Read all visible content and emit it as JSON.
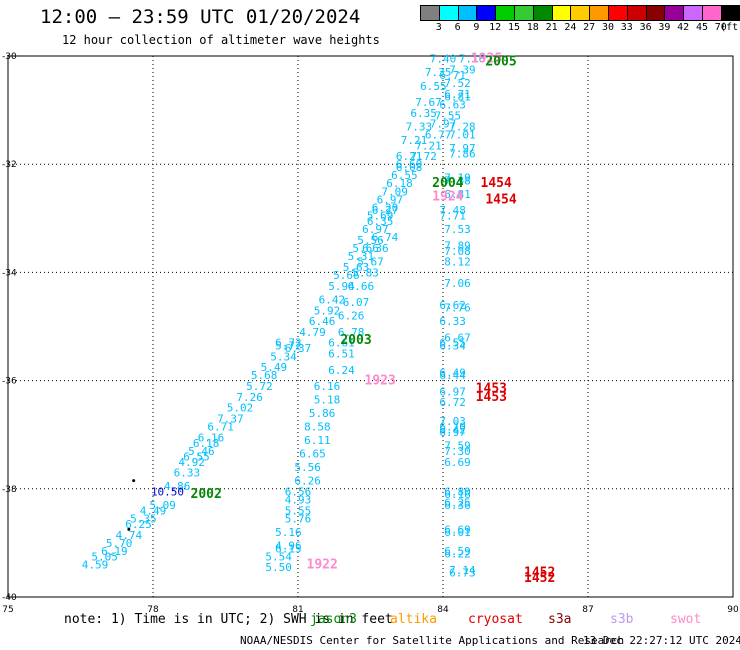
{
  "header": {
    "title": "12:00 — 23:59 UTC 01/20/2024",
    "subtitle": "12 hour collection of altimeter wave heights"
  },
  "colorbar": {
    "labels": [
      "3",
      "6",
      "9",
      "12",
      "15",
      "18",
      "21",
      "24",
      "27",
      "30",
      "33",
      "36",
      "39",
      "42",
      "45",
      "70",
      "(ft)"
    ],
    "colors": [
      "#808080",
      "#00ffff",
      "#00bfff",
      "#0000ff",
      "#00cc00",
      "#33cc33",
      "#008800",
      "#ffff00",
      "#ffcc00",
      "#ff9900",
      "#ff0000",
      "#cc0000",
      "#880000",
      "#990099",
      "#cc66ff",
      "#ff66cc",
      "#000000"
    ]
  },
  "note": "note: 1) Time is in UTC; 2) SWH is in feet",
  "legend": [
    {
      "name": "jason3",
      "color": "#008800"
    },
    {
      "name": "altika",
      "color": "#ff9900"
    },
    {
      "name": "cryosat",
      "color": "#dd0000"
    },
    {
      "name": "s3a",
      "color": "#880000"
    },
    {
      "name": "s3b",
      "color": "#bb99ee"
    },
    {
      "name": "swot",
      "color": "#ff88cc"
    }
  ],
  "footer": {
    "credit": "NOAA/NESDIS Center for Satellite Applications and Research",
    "timestamp": "13 Dec 22:27:12 UTC 2024"
  },
  "chart_data": {
    "type": "scatter",
    "title": "12:00 — 23:59 UTC 01/20/2024",
    "subtitle": "12 hour collection of altimeter wave heights",
    "xlabel": "",
    "ylabel": "",
    "xlim": [
      75,
      90
    ],
    "ylim": [
      -40,
      -30
    ],
    "xticks": [
      "75",
      "78",
      "81",
      "84",
      "87",
      "90"
    ],
    "yticks": [
      "-30",
      "-32",
      "-34",
      "-36",
      "-38",
      "-40"
    ],
    "grid": true,
    "points": [
      {
        "x": 84.0,
        "y": -30.05,
        "text": "7.40",
        "color": "#00bfff"
      },
      {
        "x": 84.6,
        "y": -30.05,
        "text": "7.16",
        "color": "#00bfff"
      },
      {
        "x": 83.9,
        "y": -30.3,
        "text": "7.35",
        "color": "#00bfff"
      },
      {
        "x": 84.4,
        "y": -30.25,
        "text": "7.39",
        "color": "#00bfff"
      },
      {
        "x": 84.2,
        "y": -30.35,
        "text": "6.71",
        "color": "#00bfff"
      },
      {
        "x": 84.3,
        "y": -30.5,
        "text": "7.52",
        "color": "#00bfff"
      },
      {
        "x": 83.8,
        "y": -30.55,
        "text": "6.55",
        "color": "#00bfff"
      },
      {
        "x": 84.3,
        "y": -30.7,
        "text": "6.71",
        "color": "#00bfff"
      },
      {
        "x": 84.3,
        "y": -30.75,
        "text": "6.81",
        "color": "#00bfff"
      },
      {
        "x": 83.7,
        "y": -30.85,
        "text": "7.67",
        "color": "#00bfff"
      },
      {
        "x": 84.2,
        "y": -30.9,
        "text": "6.63",
        "color": "#00bfff"
      },
      {
        "x": 83.6,
        "y": -31.05,
        "text": "6.35",
        "color": "#00bfff"
      },
      {
        "x": 84.1,
        "y": -31.1,
        "text": "7.55",
        "color": "#00bfff"
      },
      {
        "x": 83.5,
        "y": -31.3,
        "text": "7.33",
        "color": "#00bfff"
      },
      {
        "x": 84.0,
        "y": -31.25,
        "text": "7.97",
        "color": "#00bfff"
      },
      {
        "x": 84.4,
        "y": -31.3,
        "text": "7.28",
        "color": "#00bfff"
      },
      {
        "x": 83.9,
        "y": -31.45,
        "text": "6.77",
        "color": "#00bfff"
      },
      {
        "x": 84.4,
        "y": -31.45,
        "text": "7.01",
        "color": "#00bfff"
      },
      {
        "x": 83.4,
        "y": -31.55,
        "text": "7.21",
        "color": "#00bfff"
      },
      {
        "x": 83.7,
        "y": -31.65,
        "text": "7.21",
        "color": "#00bfff"
      },
      {
        "x": 84.4,
        "y": -31.7,
        "text": "7.97",
        "color": "#00bfff"
      },
      {
        "x": 83.3,
        "y": -31.85,
        "text": "6.21",
        "color": "#00bfff"
      },
      {
        "x": 83.6,
        "y": -31.85,
        "text": "7.72",
        "color": "#00bfff"
      },
      {
        "x": 84.4,
        "y": -31.8,
        "text": "7.86",
        "color": "#00bfff"
      },
      {
        "x": 83.3,
        "y": -32.0,
        "text": "6.69",
        "color": "#00bfff"
      },
      {
        "x": 83.3,
        "y": -32.05,
        "text": "6.08",
        "color": "#00bfff"
      },
      {
        "x": 84.3,
        "y": -32.25,
        "text": "7.19",
        "color": "#00bfff"
      },
      {
        "x": 83.2,
        "y": -32.2,
        "text": "6.55",
        "color": "#00bfff"
      },
      {
        "x": 84.3,
        "y": -32.3,
        "text": "7.38",
        "color": "#00bfff"
      },
      {
        "x": 83.1,
        "y": -32.35,
        "text": "6.18",
        "color": "#00bfff"
      },
      {
        "x": 83.0,
        "y": -32.5,
        "text": "7.09",
        "color": "#00bfff"
      },
      {
        "x": 84.3,
        "y": -32.55,
        "text": "6.81",
        "color": "#00bfff"
      },
      {
        "x": 82.9,
        "y": -32.65,
        "text": "6.97",
        "color": "#00bfff"
      },
      {
        "x": 82.8,
        "y": -32.8,
        "text": "6.20",
        "color": "#00bfff"
      },
      {
        "x": 82.8,
        "y": -32.85,
        "text": "6.27",
        "color": "#00bfff"
      },
      {
        "x": 84.2,
        "y": -32.85,
        "text": "7.48",
        "color": "#00bfff"
      },
      {
        "x": 82.7,
        "y": -32.95,
        "text": "5.69",
        "color": "#00bfff"
      },
      {
        "x": 84.2,
        "y": -32.95,
        "text": "7.71",
        "color": "#00bfff"
      },
      {
        "x": 82.7,
        "y": -33.05,
        "text": "6.35",
        "color": "#00bfff"
      },
      {
        "x": 82.6,
        "y": -33.2,
        "text": "6.97",
        "color": "#00bfff"
      },
      {
        "x": 84.3,
        "y": -33.2,
        "text": "7.53",
        "color": "#00bfff"
      },
      {
        "x": 82.8,
        "y": -33.35,
        "text": "6.74",
        "color": "#00bfff"
      },
      {
        "x": 82.5,
        "y": -33.4,
        "text": "5.56",
        "color": "#00bfff"
      },
      {
        "x": 82.4,
        "y": -33.55,
        "text": "5.66",
        "color": "#00bfff"
      },
      {
        "x": 82.6,
        "y": -33.55,
        "text": "6.36",
        "color": "#00bfff"
      },
      {
        "x": 84.3,
        "y": -33.5,
        "text": "7.89",
        "color": "#00bfff"
      },
      {
        "x": 84.3,
        "y": -33.6,
        "text": "7.08",
        "color": "#00bfff"
      },
      {
        "x": 82.3,
        "y": -33.7,
        "text": "5.31",
        "color": "#00bfff"
      },
      {
        "x": 82.5,
        "y": -33.8,
        "text": "5.67",
        "color": "#00bfff"
      },
      {
        "x": 84.3,
        "y": -33.8,
        "text": "8.12",
        "color": "#00bfff"
      },
      {
        "x": 82.2,
        "y": -33.9,
        "text": "5.63",
        "color": "#00bfff"
      },
      {
        "x": 82.4,
        "y": -34.0,
        "text": "5.83",
        "color": "#00bfff"
      },
      {
        "x": 82.0,
        "y": -34.05,
        "text": "5.66",
        "color": "#00bfff"
      },
      {
        "x": 82.3,
        "y": -34.25,
        "text": "6.66",
        "color": "#00bfff"
      },
      {
        "x": 84.3,
        "y": -34.2,
        "text": "7.06",
        "color": "#00bfff"
      },
      {
        "x": 81.9,
        "y": -34.25,
        "text": "5.94",
        "color": "#00bfff"
      },
      {
        "x": 81.7,
        "y": -34.5,
        "text": "6.42",
        "color": "#00bfff"
      },
      {
        "x": 82.2,
        "y": -34.55,
        "text": "6.07",
        "color": "#00bfff"
      },
      {
        "x": 84.2,
        "y": -34.6,
        "text": "6.62",
        "color": "#00bfff"
      },
      {
        "x": 84.3,
        "y": -34.65,
        "text": "7.76",
        "color": "#00bfff"
      },
      {
        "x": 81.6,
        "y": -34.7,
        "text": "5.92",
        "color": "#00bfff"
      },
      {
        "x": 82.1,
        "y": -34.8,
        "text": "6.26",
        "color": "#00bfff"
      },
      {
        "x": 84.2,
        "y": -34.9,
        "text": "6.33",
        "color": "#00bfff"
      },
      {
        "x": 81.5,
        "y": -34.9,
        "text": "6.46",
        "color": "#00bfff"
      },
      {
        "x": 82.1,
        "y": -35.1,
        "text": "6.78",
        "color": "#00bfff"
      },
      {
        "x": 81.3,
        "y": -35.1,
        "text": "4.79",
        "color": "#00bfff"
      },
      {
        "x": 84.3,
        "y": -35.2,
        "text": "6.67",
        "color": "#00bfff"
      },
      {
        "x": 84.2,
        "y": -35.3,
        "text": "6.55",
        "color": "#00bfff"
      },
      {
        "x": 80.8,
        "y": -35.3,
        "text": "6.72",
        "color": "#00bfff"
      },
      {
        "x": 81.9,
        "y": -35.3,
        "text": "6.61",
        "color": "#00bfff"
      },
      {
        "x": 84.2,
        "y": -35.35,
        "text": "6.34",
        "color": "#00bfff"
      },
      {
        "x": 80.8,
        "y": -35.35,
        "text": "5.72",
        "color": "#00bfff"
      },
      {
        "x": 81.0,
        "y": -35.4,
        "text": "6.37",
        "color": "#00bfff"
      },
      {
        "x": 81.9,
        "y": -35.5,
        "text": "6.51",
        "color": "#00bfff"
      },
      {
        "x": 80.7,
        "y": -35.55,
        "text": "5.34",
        "color": "#00bfff"
      },
      {
        "x": 80.5,
        "y": -35.75,
        "text": "5.49",
        "color": "#00bfff"
      },
      {
        "x": 84.2,
        "y": -35.85,
        "text": "6.49",
        "color": "#00bfff"
      },
      {
        "x": 81.9,
        "y": -35.8,
        "text": "6.24",
        "color": "#00bfff"
      },
      {
        "x": 84.2,
        "y": -35.9,
        "text": "6.44",
        "color": "#00bfff"
      },
      {
        "x": 80.3,
        "y": -35.9,
        "text": "5.68",
        "color": "#00bfff"
      },
      {
        "x": 80.2,
        "y": -36.1,
        "text": "5.72",
        "color": "#00bfff"
      },
      {
        "x": 81.6,
        "y": -36.1,
        "text": "6.16",
        "color": "#00bfff"
      },
      {
        "x": 84.2,
        "y": -36.2,
        "text": "6.97",
        "color": "#00bfff"
      },
      {
        "x": 80.0,
        "y": -36.3,
        "text": "7.26",
        "color": "#00bfff"
      },
      {
        "x": 81.6,
        "y": -36.35,
        "text": "5.18",
        "color": "#00bfff"
      },
      {
        "x": 84.2,
        "y": -36.4,
        "text": "6.72",
        "color": "#00bfff"
      },
      {
        "x": 79.8,
        "y": -36.5,
        "text": "5.02",
        "color": "#00bfff"
      },
      {
        "x": 81.5,
        "y": -36.6,
        "text": "5.86",
        "color": "#00bfff"
      },
      {
        "x": 79.6,
        "y": -36.7,
        "text": "7.37",
        "color": "#00bfff"
      },
      {
        "x": 84.2,
        "y": -36.75,
        "text": "7.03",
        "color": "#00bfff"
      },
      {
        "x": 79.4,
        "y": -36.85,
        "text": "6.71",
        "color": "#00bfff"
      },
      {
        "x": 81.4,
        "y": -36.85,
        "text": "8.58",
        "color": "#00bfff"
      },
      {
        "x": 84.2,
        "y": -36.85,
        "text": "6.70",
        "color": "#00bfff"
      },
      {
        "x": 84.2,
        "y": -36.9,
        "text": "6.42",
        "color": "#00bfff"
      },
      {
        "x": 79.2,
        "y": -37.05,
        "text": "6.16",
        "color": "#00bfff"
      },
      {
        "x": 84.2,
        "y": -36.95,
        "text": "6.97",
        "color": "#00bfff"
      },
      {
        "x": 81.4,
        "y": -37.1,
        "text": "6.11",
        "color": "#00bfff"
      },
      {
        "x": 79.1,
        "y": -37.15,
        "text": "6.18",
        "color": "#00bfff"
      },
      {
        "x": 84.3,
        "y": -37.2,
        "text": "7.59",
        "color": "#00bfff"
      },
      {
        "x": 79.0,
        "y": -37.3,
        "text": "5.46",
        "color": "#00bfff"
      },
      {
        "x": 81.3,
        "y": -37.35,
        "text": "6.65",
        "color": "#00bfff"
      },
      {
        "x": 84.3,
        "y": -37.3,
        "text": "7.30",
        "color": "#00bfff"
      },
      {
        "x": 78.9,
        "y": -37.4,
        "text": "6.55",
        "color": "#00bfff"
      },
      {
        "x": 78.8,
        "y": -37.5,
        "text": "4.92",
        "color": "#00bfff"
      },
      {
        "x": 84.3,
        "y": -37.5,
        "text": "6.69",
        "color": "#00bfff"
      },
      {
        "x": 81.2,
        "y": -37.6,
        "text": "5.56",
        "color": "#00bfff"
      },
      {
        "x": 78.7,
        "y": -37.7,
        "text": "6.33",
        "color": "#00bfff"
      },
      {
        "x": 81.2,
        "y": -37.85,
        "text": "6.26",
        "color": "#00bfff"
      },
      {
        "x": 78.5,
        "y": -37.95,
        "text": "4.86",
        "color": "#00bfff"
      },
      {
        "x": 84.3,
        "y": -38.05,
        "text": "6.80",
        "color": "#00bfff"
      },
      {
        "x": 81.0,
        "y": -38.05,
        "text": "6.56",
        "color": "#00bfff"
      },
      {
        "x": 84.3,
        "y": -38.1,
        "text": "6.16",
        "color": "#00bfff"
      },
      {
        "x": 78.2,
        "y": -38.3,
        "text": "5.09",
        "color": "#00bfff"
      },
      {
        "x": 81.0,
        "y": -38.2,
        "text": "4.93",
        "color": "#00bfff"
      },
      {
        "x": 84.3,
        "y": -38.25,
        "text": "6.25",
        "color": "#00bfff"
      },
      {
        "x": 84.3,
        "y": -38.3,
        "text": "6.36",
        "color": "#00bfff"
      },
      {
        "x": 78.0,
        "y": -38.4,
        "text": "4.49",
        "color": "#00bfff"
      },
      {
        "x": 81.0,
        "y": -38.4,
        "text": "5.55",
        "color": "#00bfff"
      },
      {
        "x": 77.8,
        "y": -38.55,
        "text": "5.35",
        "color": "#00bfff"
      },
      {
        "x": 81.0,
        "y": -38.55,
        "text": "5.76",
        "color": "#00bfff"
      },
      {
        "x": 84.3,
        "y": -38.75,
        "text": "6.69",
        "color": "#00bfff"
      },
      {
        "x": 77.7,
        "y": -38.65,
        "text": "6.25",
        "color": "#00bfff"
      },
      {
        "x": 84.3,
        "y": -38.8,
        "text": "6.01",
        "color": "#00bfff"
      },
      {
        "x": 80.8,
        "y": -38.8,
        "text": "5.16",
        "color": "#00bfff"
      },
      {
        "x": 77.5,
        "y": -38.85,
        "text": "4.74",
        "color": "#00bfff"
      },
      {
        "x": 77.3,
        "y": -39.0,
        "text": "5.70",
        "color": "#00bfff"
      },
      {
        "x": 80.8,
        "y": -39.05,
        "text": "4.96",
        "color": "#00bfff"
      },
      {
        "x": 80.8,
        "y": -39.1,
        "text": "6.15",
        "color": "#00bfff"
      },
      {
        "x": 84.3,
        "y": -39.15,
        "text": "6.59",
        "color": "#00bfff"
      },
      {
        "x": 84.3,
        "y": -39.2,
        "text": "6.22",
        "color": "#00bfff"
      },
      {
        "x": 77.2,
        "y": -39.15,
        "text": "6.19",
        "color": "#00bfff"
      },
      {
        "x": 80.6,
        "y": -39.25,
        "text": "5.54",
        "color": "#00bfff"
      },
      {
        "x": 77.0,
        "y": -39.25,
        "text": "5.05",
        "color": "#00bfff"
      },
      {
        "x": 84.4,
        "y": -39.5,
        "text": "7.14",
        "color": "#00bfff"
      },
      {
        "x": 84.4,
        "y": -39.55,
        "text": "6.73",
        "color": "#00bfff"
      },
      {
        "x": 76.8,
        "y": -39.4,
        "text": "4.59",
        "color": "#00bfff"
      },
      {
        "x": 80.6,
        "y": -39.45,
        "text": "5.50",
        "color": "#00bfff"
      },
      {
        "x": 78.3,
        "y": -38.05,
        "text": "10.50",
        "color": "#0000cc"
      },
      {
        "x": 84.9,
        "y": -30.05,
        "text": "1925",
        "color": "#ff88cc",
        "kind": "time"
      },
      {
        "x": 85.2,
        "y": -30.1,
        "text": "2005",
        "color": "#008800",
        "kind": "time"
      },
      {
        "x": 84.1,
        "y": -32.35,
        "text": "2004",
        "color": "#008800",
        "kind": "time"
      },
      {
        "x": 84.1,
        "y": -32.6,
        "text": "1924",
        "color": "#ff88cc",
        "kind": "time"
      },
      {
        "x": 85.1,
        "y": -32.35,
        "text": "1454",
        "color": "#dd0000",
        "kind": "time"
      },
      {
        "x": 85.2,
        "y": -32.65,
        "text": "1454",
        "color": "#dd0000",
        "kind": "time"
      },
      {
        "x": 82.2,
        "y": -35.25,
        "text": "2003",
        "color": "#008800",
        "kind": "time"
      },
      {
        "x": 82.7,
        "y": -36.0,
        "text": "1923",
        "color": "#ff88cc",
        "kind": "time"
      },
      {
        "x": 85.0,
        "y": -36.15,
        "text": "1453",
        "color": "#dd0000",
        "kind": "time"
      },
      {
        "x": 85.0,
        "y": -36.3,
        "text": "1453",
        "color": "#dd0000",
        "kind": "time"
      },
      {
        "x": 79.1,
        "y": -38.1,
        "text": "2002",
        "color": "#008800",
        "kind": "time"
      },
      {
        "x": 81.5,
        "y": -39.4,
        "text": "1922",
        "color": "#ff88cc",
        "kind": "time"
      },
      {
        "x": 86.0,
        "y": -39.55,
        "text": "1452",
        "color": "#dd0000",
        "kind": "time"
      },
      {
        "x": 86.0,
        "y": -39.65,
        "text": "1452",
        "color": "#dd0000",
        "kind": "time"
      }
    ],
    "markers": [
      {
        "x": 77.6,
        "y": -37.85
      },
      {
        "x": 77.5,
        "y": -38.75
      }
    ]
  }
}
